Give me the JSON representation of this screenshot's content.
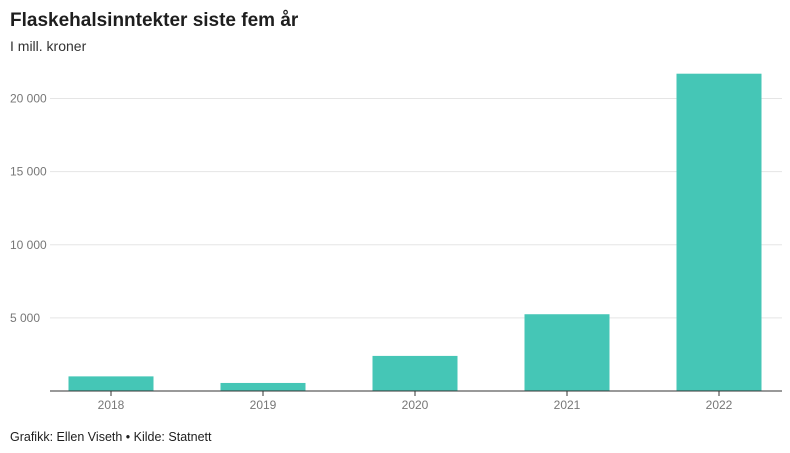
{
  "header": {
    "title": "Flaskehalsinntekter siste fem år",
    "subtitle": "I mill. kroner"
  },
  "footer": {
    "credit": "Grafikk: Ellen Viseth • Kilde: Statnett"
  },
  "colors": {
    "bar": "#45c6b6",
    "grid": "#e5e5e5",
    "axis": "#333333"
  },
  "chart_data": {
    "type": "bar",
    "title": "Flaskehalsinntekter siste fem år",
    "subtitle": "I mill. kroner",
    "categories": [
      "2018",
      "2019",
      "2020",
      "2021",
      "2022"
    ],
    "values": [
      1000,
      550,
      2400,
      5250,
      21700
    ],
    "ylim": [
      0,
      22500
    ],
    "yticks": [
      5000,
      10000,
      15000,
      20000
    ],
    "ytick_labels": [
      "5 000",
      "10 000",
      "15 000",
      "20 000"
    ],
    "grid": true,
    "xlabel": "",
    "ylabel": ""
  }
}
